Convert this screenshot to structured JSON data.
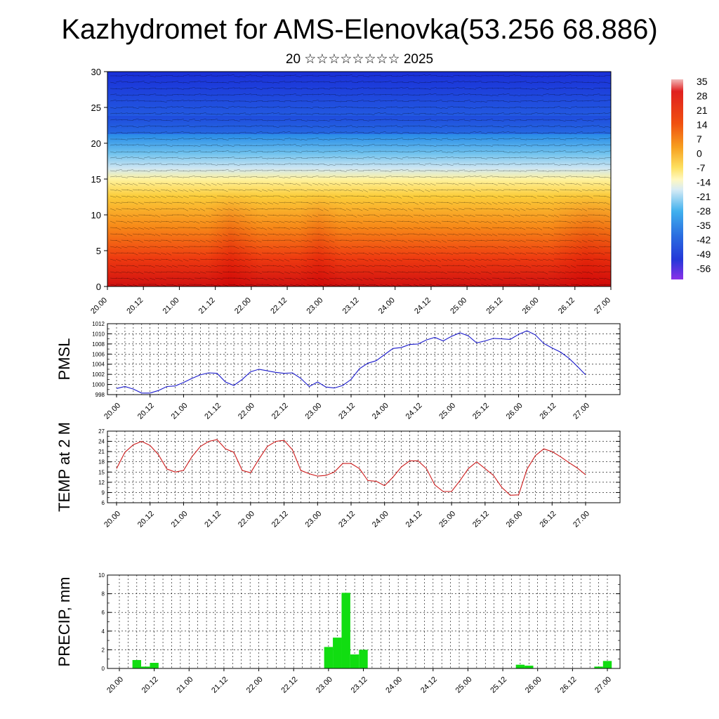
{
  "header": {
    "title": "Kazhydromet for AMS-Elenovka(53.256 68.886)",
    "subtitle": "20 ☆☆☆☆☆☆☆☆ 2025"
  },
  "time_ticks": [
    "20.00",
    "20.12",
    "21.00",
    "21.12",
    "22.00",
    "22.12",
    "23.00",
    "23.12",
    "24.00",
    "24.12",
    "25.00",
    "25.12",
    "26.00",
    "26.12",
    "27.00"
  ],
  "chart_data": [
    {
      "type": "heatmap",
      "name_note": "vertical cross-section temperature with wind barbs",
      "x": [
        "20.00",
        "20.12",
        "21.00",
        "21.12",
        "22.00",
        "22.12",
        "23.00",
        "23.12",
        "24.00",
        "24.12",
        "25.00",
        "25.12",
        "26.00",
        "26.12",
        "27.00"
      ],
      "ylim": [
        0,
        30
      ],
      "yticks": [
        0,
        5,
        10,
        15,
        20,
        25,
        30
      ],
      "colorbar": {
        "labels": [
          "35",
          "28",
          "21",
          "14",
          "7",
          "0",
          "-7",
          "-14",
          "-21",
          "-28",
          "-35",
          "-42",
          "-49",
          "-56"
        ],
        "values": [
          35,
          28,
          21,
          14,
          7,
          0,
          -7,
          -14,
          -21,
          -28,
          -35,
          -42,
          -49,
          -56
        ]
      }
    },
    {
      "type": "line",
      "ylabel": "PMSL",
      "ylim": [
        998,
        1012
      ],
      "yticks": [
        998,
        1000,
        1002,
        1004,
        1006,
        1008,
        1010,
        1012
      ],
      "color": "#1a1acc",
      "x_start": "20.00",
      "x_step_hours": 3,
      "values": [
        999.2,
        999.6,
        999.1,
        998.3,
        998.3,
        998.8,
        999.6,
        999.7,
        1000.4,
        1001.2,
        1001.9,
        1002.3,
        1002.2,
        1000.5,
        999.8,
        1001.0,
        1002.5,
        1003.0,
        1002.7,
        1002.4,
        1002.2,
        1002.3,
        1001.2,
        999.6,
        1000.5,
        999.5,
        999.3,
        999.8,
        1001.0,
        1003.1,
        1004.2,
        1004.7,
        1005.9,
        1007.1,
        1007.3,
        1007.9,
        1008.0,
        1008.8,
        1009.3,
        1008.6,
        1009.5,
        1010.2,
        1009.6,
        1008.2,
        1008.6,
        1009.1,
        1009.0,
        1008.9,
        1009.9,
        1010.6,
        1009.8,
        1008.1,
        1007.2,
        1006.4,
        1005.2,
        1003.6,
        1001.9
      ]
    },
    {
      "type": "line",
      "ylabel": "TEMP at 2 M",
      "ylim": [
        6,
        27
      ],
      "yticks": [
        6,
        9,
        12,
        15,
        18,
        21,
        24,
        27
      ],
      "color": "#cc1a1a",
      "x_start": "20.00",
      "x_step_hours": 3,
      "values": [
        16.0,
        20.8,
        23.0,
        24.0,
        22.8,
        20.1,
        15.9,
        15.0,
        15.5,
        19.5,
        22.5,
        24.0,
        24.5,
        21.8,
        20.8,
        15.5,
        14.8,
        18.8,
        22.5,
        24.0,
        24.3,
        21.5,
        15.5,
        14.5,
        13.8,
        14.0,
        15.0,
        17.5,
        17.5,
        16.0,
        12.5,
        12.3,
        11.0,
        13.5,
        16.5,
        18.3,
        18.3,
        16.0,
        11.2,
        9.3,
        9.3,
        12.5,
        16.0,
        18.0,
        16.0,
        14.0,
        10.5,
        8.2,
        8.3,
        15.8,
        19.8,
        21.8,
        21.0,
        19.5,
        17.8,
        16.2,
        14.2
      ]
    },
    {
      "type": "bar",
      "ylabel": "PRECIP, mm",
      "ylim": [
        0,
        10
      ],
      "yticks": [
        0,
        2,
        4,
        6,
        8,
        10
      ],
      "color": "#11dd11",
      "x_start": "20.00",
      "x_step_hours": 3,
      "values": [
        0,
        0,
        0.9,
        0.2,
        0.6,
        0,
        0,
        0,
        0,
        0,
        0,
        0,
        0,
        0,
        0,
        0,
        0,
        0,
        0,
        0,
        0,
        0,
        0,
        0,
        2.3,
        3.3,
        8.1,
        1.5,
        2.0,
        0,
        0,
        0,
        0,
        0,
        0,
        0,
        0,
        0,
        0,
        0,
        0,
        0,
        0,
        0,
        0,
        0,
        0.4,
        0.3,
        0,
        0,
        0,
        0,
        0,
        0,
        0,
        0.2,
        0.8
      ]
    }
  ]
}
